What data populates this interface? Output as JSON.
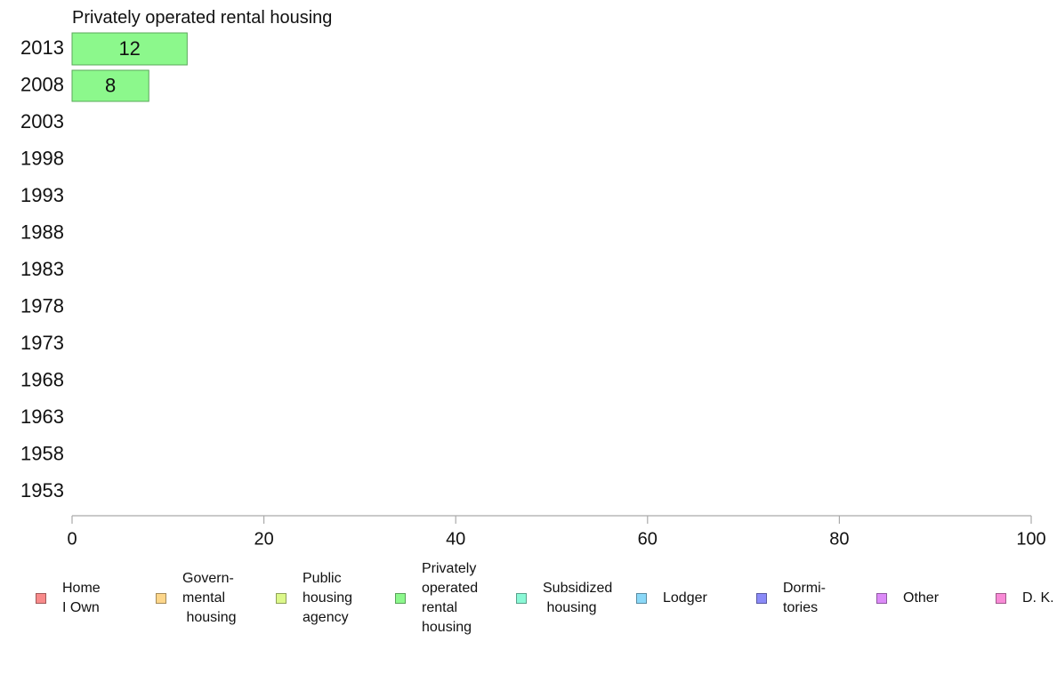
{
  "chart_data": {
    "type": "bar",
    "orientation": "horizontal",
    "stacked": true,
    "title": "Privately operated rental housing",
    "categories": [
      "2013",
      "2008",
      "2003",
      "1998",
      "1993",
      "1988",
      "1983",
      "1978",
      "1973",
      "1968",
      "1963",
      "1958",
      "1953"
    ],
    "series": [
      {
        "name": "Home\nI Own",
        "color": "#F88A8A",
        "values": [
          null,
          null,
          null,
          null,
          null,
          null,
          null,
          null,
          null,
          null,
          null,
          null,
          null
        ]
      },
      {
        "name": "Govern-\nmental\n housing",
        "color": "#FDD68A",
        "values": [
          null,
          null,
          null,
          null,
          null,
          null,
          null,
          null,
          null,
          null,
          null,
          null,
          null
        ]
      },
      {
        "name": "Public\nhousing\nagency",
        "color": "#DCF88A",
        "values": [
          null,
          null,
          null,
          null,
          null,
          null,
          null,
          null,
          null,
          null,
          null,
          null,
          null
        ]
      },
      {
        "name": "Privately\noperated\nrental\nhousing",
        "color": "#8CF88C",
        "values": [
          12,
          8,
          null,
          null,
          null,
          null,
          null,
          null,
          null,
          null,
          null,
          null,
          null
        ]
      },
      {
        "name": "Subsidized\n housing",
        "color": "#8AF8D6",
        "values": [
          null,
          null,
          null,
          null,
          null,
          null,
          null,
          null,
          null,
          null,
          null,
          null,
          null
        ]
      },
      {
        "name": "Lodger",
        "color": "#8AD8F8",
        "values": [
          null,
          null,
          null,
          null,
          null,
          null,
          null,
          null,
          null,
          null,
          null,
          null,
          null
        ]
      },
      {
        "name": "Dormi-\ntories",
        "color": "#8A8AF8",
        "values": [
          null,
          null,
          null,
          null,
          null,
          null,
          null,
          null,
          null,
          null,
          null,
          null,
          null
        ]
      },
      {
        "name": "Other",
        "color": "#DC8AF8",
        "values": [
          null,
          null,
          null,
          null,
          null,
          null,
          null,
          null,
          null,
          null,
          null,
          null,
          null
        ]
      },
      {
        "name": "D. K.",
        "color": "#F88AD6",
        "values": [
          null,
          null,
          null,
          null,
          null,
          null,
          null,
          null,
          null,
          null,
          null,
          null,
          null
        ]
      }
    ],
    "xlim": [
      0,
      100
    ],
    "xticks": [
      0,
      20,
      40,
      60,
      80,
      100
    ],
    "grid": false,
    "legend_position": "bottom"
  }
}
